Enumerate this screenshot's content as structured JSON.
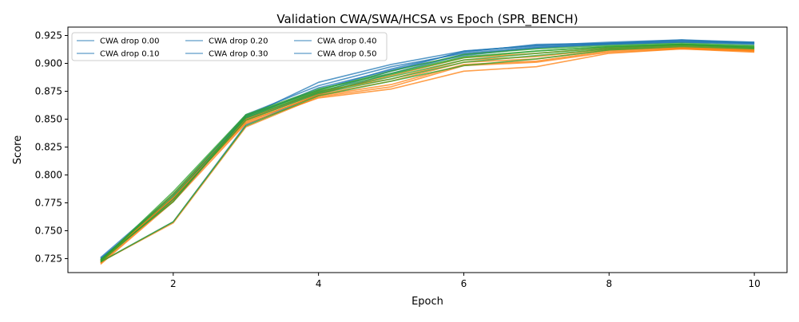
{
  "chart_data": {
    "type": "line",
    "title": "Validation CWA/SWA/HCSA vs Epoch (SPR_BENCH)",
    "xlabel": "Epoch",
    "ylabel": "Score",
    "xlim": [
      0.55,
      10.45
    ],
    "ylim": [
      0.7125,
      0.9325
    ],
    "xticks": [
      2,
      4,
      6,
      8,
      10
    ],
    "yticks": [
      0.725,
      0.75,
      0.775,
      0.8,
      0.825,
      0.85,
      0.875,
      0.9,
      0.925
    ],
    "legend_position": "top-left",
    "legend_columns": 3,
    "legend": [
      "CWA drop 0.00",
      "CWA drop 0.10",
      "CWA drop 0.20",
      "CWA drop 0.30",
      "CWA drop 0.40",
      "CWA drop 0.50"
    ],
    "x": [
      1,
      2,
      3,
      4,
      5,
      6,
      7,
      8,
      9,
      10
    ],
    "series": [
      {
        "name": "CWA drop 0.00",
        "metric": "CWA",
        "color": "#1f77b4",
        "values": [
          0.725,
          0.779,
          0.853,
          0.876,
          0.895,
          0.91,
          0.917,
          0.918,
          0.92,
          0.919
        ]
      },
      {
        "name": "CWA drop 0.10",
        "metric": "CWA",
        "color": "#1f77b4",
        "values": [
          0.723,
          0.776,
          0.85,
          0.874,
          0.893,
          0.911,
          0.916,
          0.919,
          0.921,
          0.918
        ]
      },
      {
        "name": "CWA drop 0.20",
        "metric": "CWA",
        "color": "#1f77b4",
        "values": [
          0.726,
          0.782,
          0.854,
          0.88,
          0.897,
          0.909,
          0.915,
          0.917,
          0.919,
          0.917
        ]
      },
      {
        "name": "CWA drop 0.30",
        "metric": "CWA",
        "color": "#1f77b4",
        "values": [
          0.722,
          0.758,
          0.845,
          0.872,
          0.891,
          0.908,
          0.914,
          0.918,
          0.92,
          0.918
        ]
      },
      {
        "name": "CWA drop 0.40",
        "metric": "CWA",
        "color": "#1f77b4",
        "values": [
          0.724,
          0.78,
          0.852,
          0.883,
          0.899,
          0.911,
          0.916,
          0.918,
          0.921,
          0.919
        ]
      },
      {
        "name": "CWA drop 0.50",
        "metric": "CWA",
        "color": "#1f77b4",
        "values": [
          0.725,
          0.778,
          0.851,
          0.878,
          0.894,
          0.907,
          0.914,
          0.917,
          0.919,
          0.918
        ]
      },
      {
        "metric": "SWA",
        "color": "#ff7f0e",
        "values": [
          0.72,
          0.776,
          0.846,
          0.869,
          0.877,
          0.893,
          0.897,
          0.909,
          0.913,
          0.91
        ]
      },
      {
        "metric": "SWA",
        "color": "#ff7f0e",
        "values": [
          0.722,
          0.78,
          0.848,
          0.871,
          0.881,
          0.899,
          0.902,
          0.911,
          0.914,
          0.911
        ]
      },
      {
        "metric": "SWA",
        "color": "#ff7f0e",
        "values": [
          0.721,
          0.783,
          0.85,
          0.875,
          0.886,
          0.903,
          0.906,
          0.913,
          0.915,
          0.912
        ]
      },
      {
        "metric": "SWA",
        "color": "#ff7f0e",
        "values": [
          0.722,
          0.757,
          0.843,
          0.87,
          0.879,
          0.898,
          0.901,
          0.91,
          0.913,
          0.911
        ]
      },
      {
        "metric": "SWA",
        "color": "#ff7f0e",
        "values": [
          0.721,
          0.777,
          0.849,
          0.873,
          0.889,
          0.905,
          0.909,
          0.914,
          0.916,
          0.913
        ]
      },
      {
        "metric": "SWA",
        "color": "#ff7f0e",
        "values": [
          0.723,
          0.779,
          0.847,
          0.872,
          0.884,
          0.901,
          0.904,
          0.912,
          0.914,
          0.912
        ]
      },
      {
        "metric": "HCSA",
        "color": "#2ca02c",
        "values": [
          0.722,
          0.778,
          0.849,
          0.873,
          0.886,
          0.901,
          0.907,
          0.913,
          0.916,
          0.914
        ]
      },
      {
        "metric": "HCSA",
        "color": "#2ca02c",
        "values": [
          0.723,
          0.785,
          0.854,
          0.877,
          0.891,
          0.906,
          0.911,
          0.915,
          0.917,
          0.915
        ]
      },
      {
        "metric": "HCSA",
        "color": "#2ca02c",
        "values": [
          0.724,
          0.781,
          0.851,
          0.874,
          0.888,
          0.903,
          0.909,
          0.914,
          0.917,
          0.914
        ]
      },
      {
        "metric": "HCSA",
        "color": "#2ca02c",
        "values": [
          0.722,
          0.758,
          0.844,
          0.871,
          0.884,
          0.898,
          0.904,
          0.912,
          0.915,
          0.913
        ]
      },
      {
        "metric": "HCSA",
        "color": "#2ca02c",
        "values": [
          0.723,
          0.783,
          0.853,
          0.876,
          0.893,
          0.908,
          0.913,
          0.916,
          0.918,
          0.916
        ]
      },
      {
        "metric": "HCSA",
        "color": "#2ca02c",
        "values": [
          0.724,
          0.776,
          0.852,
          0.875,
          0.89,
          0.905,
          0.911,
          0.915,
          0.917,
          0.915
        ]
      }
    ]
  }
}
